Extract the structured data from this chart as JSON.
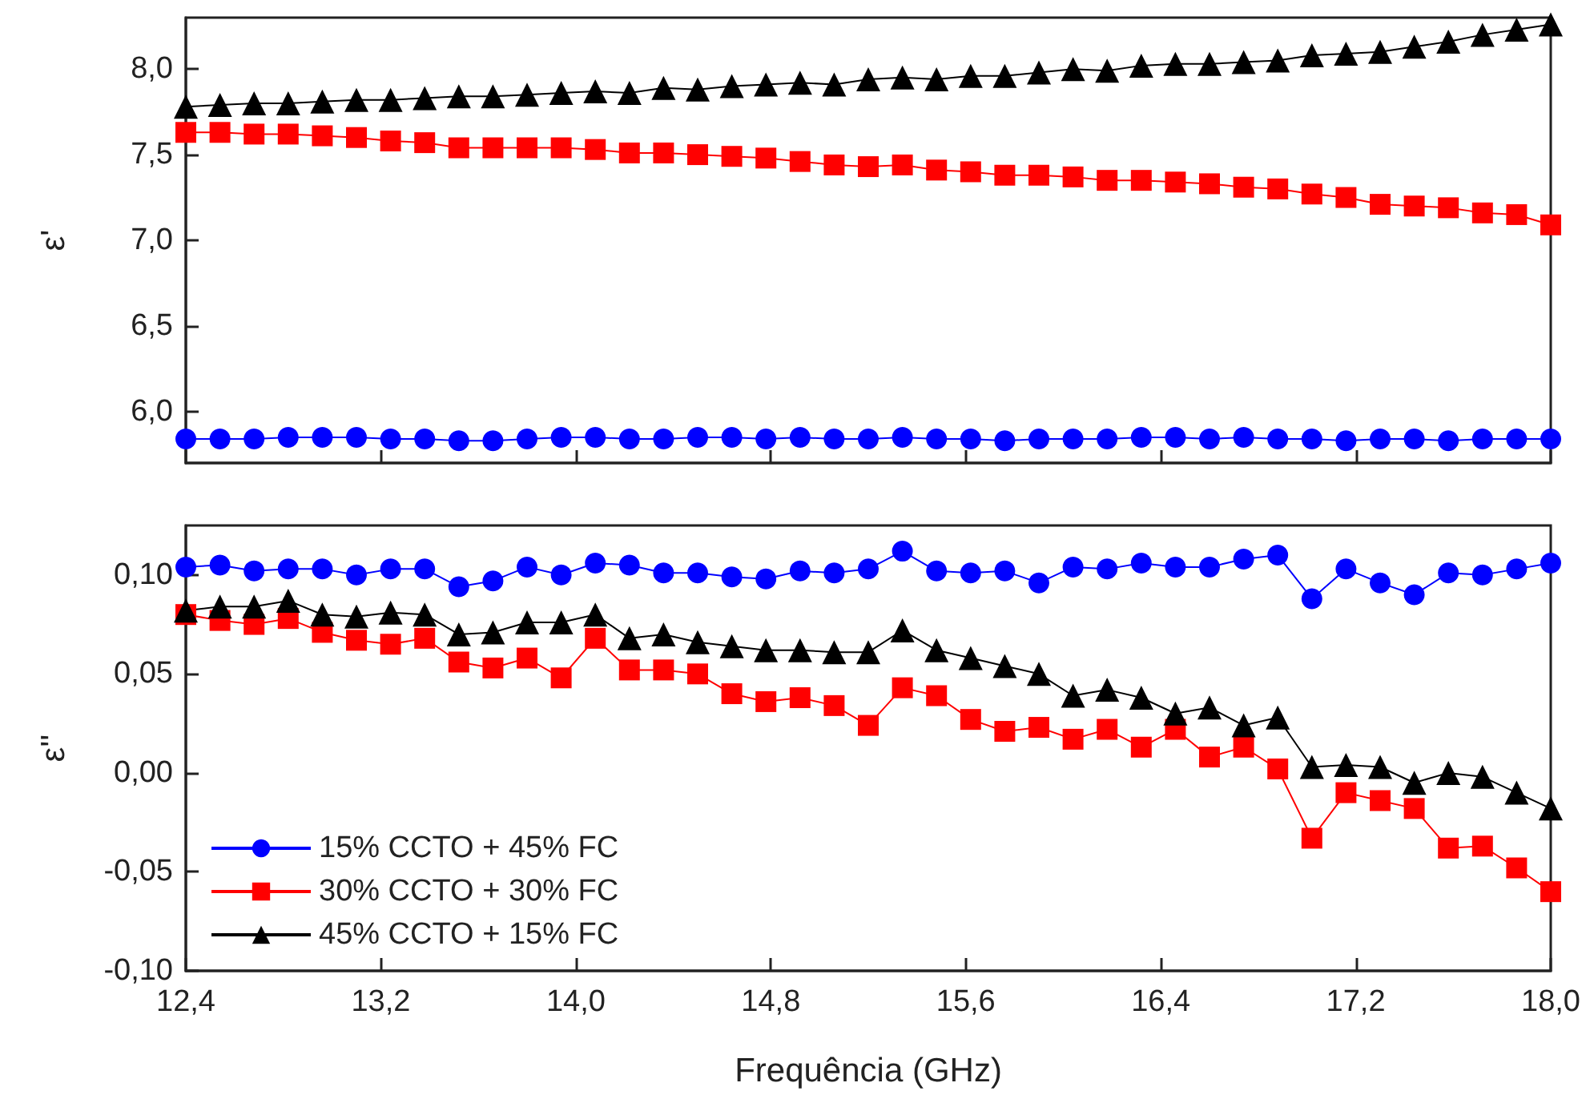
{
  "chart_data": [
    {
      "type": "line",
      "ylabel": "ε'",
      "tick_labels": "y",
      "grid": false,
      "legend": false,
      "x": [
        12.4,
        12.54,
        12.68,
        12.82,
        12.96,
        13.1,
        13.24,
        13.38,
        13.52,
        13.66,
        13.8,
        13.94,
        14.08,
        14.22,
        14.36,
        14.5,
        14.64,
        14.78,
        14.92,
        15.06,
        15.2,
        15.34,
        15.48,
        15.62,
        15.76,
        15.9,
        16.04,
        16.18,
        16.32,
        16.46,
        16.6,
        16.74,
        16.88,
        17.02,
        17.16,
        17.3,
        17.44,
        17.58,
        17.72,
        17.86,
        18.0
      ],
      "xlim": [
        12.4,
        18.0
      ],
      "xticks": [
        {
          "value": 12.4,
          "label": null
        },
        {
          "value": 13.2,
          "label": null
        },
        {
          "value": 14.0,
          "label": null
        },
        {
          "value": 14.8,
          "label": null
        },
        {
          "value": 15.6,
          "label": null
        },
        {
          "value": 16.4,
          "label": null
        },
        {
          "value": 17.2,
          "label": null
        },
        {
          "value": 18.0,
          "label": null
        }
      ],
      "ylim": [
        5.7,
        8.3
      ],
      "yticks": [
        {
          "value": 6.0,
          "label": "6,0"
        },
        {
          "value": 6.5,
          "label": "6,5"
        },
        {
          "value": 7.0,
          "label": "7,0"
        },
        {
          "value": 7.5,
          "label": "7,5"
        },
        {
          "value": 8.0,
          "label": "8,0"
        }
      ],
      "series": [
        {
          "color": "#0000ff",
          "marker": "circle",
          "values": [
            5.84,
            5.84,
            5.84,
            5.85,
            5.85,
            5.85,
            5.84,
            5.84,
            5.83,
            5.83,
            5.84,
            5.85,
            5.85,
            5.84,
            5.84,
            5.85,
            5.85,
            5.84,
            5.85,
            5.84,
            5.84,
            5.85,
            5.84,
            5.84,
            5.83,
            5.84,
            5.84,
            5.84,
            5.85,
            5.85,
            5.84,
            5.85,
            5.84,
            5.84,
            5.83,
            5.84,
            5.84,
            5.83,
            5.84,
            5.84,
            5.84
          ]
        },
        {
          "color": "#ff0000",
          "marker": "square",
          "values": [
            7.63,
            7.63,
            7.62,
            7.62,
            7.61,
            7.6,
            7.58,
            7.57,
            7.54,
            7.54,
            7.54,
            7.54,
            7.53,
            7.51,
            7.51,
            7.5,
            7.49,
            7.48,
            7.46,
            7.44,
            7.43,
            7.44,
            7.41,
            7.4,
            7.38,
            7.38,
            7.37,
            7.35,
            7.35,
            7.34,
            7.33,
            7.31,
            7.3,
            7.27,
            7.25,
            7.21,
            7.2,
            7.19,
            7.16,
            7.15,
            7.09
          ]
        },
        {
          "color": "#000000",
          "marker": "triangle",
          "values": [
            7.78,
            7.79,
            7.8,
            7.8,
            7.81,
            7.82,
            7.82,
            7.83,
            7.84,
            7.84,
            7.85,
            7.86,
            7.87,
            7.86,
            7.89,
            7.88,
            7.9,
            7.91,
            7.92,
            7.91,
            7.94,
            7.95,
            7.94,
            7.96,
            7.96,
            7.98,
            8.0,
            7.99,
            8.02,
            8.03,
            8.03,
            8.04,
            8.05,
            8.08,
            8.09,
            8.1,
            8.13,
            8.16,
            8.2,
            8.23,
            8.26
          ]
        }
      ]
    },
    {
      "type": "line",
      "ylabel": "ε''",
      "xlabel": "Frequência (GHz)",
      "grid": false,
      "legend": "bottom left",
      "x": [
        12.4,
        12.54,
        12.68,
        12.82,
        12.96,
        13.1,
        13.24,
        13.38,
        13.52,
        13.66,
        13.8,
        13.94,
        14.08,
        14.22,
        14.36,
        14.5,
        14.64,
        14.78,
        14.92,
        15.06,
        15.2,
        15.34,
        15.48,
        15.62,
        15.76,
        15.9,
        16.04,
        16.18,
        16.32,
        16.46,
        16.6,
        16.74,
        16.88,
        17.02,
        17.16,
        17.3,
        17.44,
        17.58,
        17.72,
        17.86,
        18.0
      ],
      "xlim": [
        12.4,
        18.0
      ],
      "xticks": [
        {
          "value": 12.4,
          "label": "12,4"
        },
        {
          "value": 13.2,
          "label": "13,2"
        },
        {
          "value": 14.0,
          "label": "14,0"
        },
        {
          "value": 14.8,
          "label": "14,8"
        },
        {
          "value": 15.6,
          "label": "15,6"
        },
        {
          "value": 16.4,
          "label": "16,4"
        },
        {
          "value": 17.2,
          "label": "17,2"
        },
        {
          "value": 18.0,
          "label": "18,0"
        }
      ],
      "ylim": [
        -0.1,
        0.125
      ],
      "yticks": [
        {
          "value": -0.1,
          "label": "-0,10"
        },
        {
          "value": -0.05,
          "label": "-0,05"
        },
        {
          "value": 0,
          "label": "0,00"
        },
        {
          "value": 0.05,
          "label": "0,05"
        },
        {
          "value": 0.1,
          "label": "0,10"
        }
      ],
      "series": [
        {
          "name": "15% CCTO + 45% FC",
          "color": "#0000ff",
          "marker": "circle",
          "values": [
            0.104,
            0.105,
            0.102,
            0.103,
            0.103,
            0.1,
            0.103,
            0.103,
            0.094,
            0.097,
            0.104,
            0.1,
            0.106,
            0.105,
            0.101,
            0.101,
            0.099,
            0.098,
            0.102,
            0.101,
            0.103,
            0.112,
            0.102,
            0.101,
            0.102,
            0.096,
            0.104,
            0.103,
            0.106,
            0.104,
            0.104,
            0.108,
            0.11,
            0.088,
            0.103,
            0.096,
            0.09,
            0.101,
            0.1,
            0.103,
            0.106
          ]
        },
        {
          "name": "30% CCTO + 30% FC",
          "color": "#ff0000",
          "marker": "square",
          "values": [
            0.08,
            0.077,
            0.075,
            0.078,
            0.071,
            0.067,
            0.065,
            0.068,
            0.056,
            0.053,
            0.058,
            0.048,
            0.068,
            0.052,
            0.052,
            0.05,
            0.04,
            0.036,
            0.038,
            0.034,
            0.024,
            0.043,
            0.039,
            0.027,
            0.021,
            0.023,
            0.017,
            0.022,
            0.013,
            0.022,
            0.008,
            0.013,
            0.002,
            -0.033,
            -0.01,
            -0.014,
            -0.018,
            -0.038,
            -0.037,
            -0.048,
            -0.06
          ]
        },
        {
          "name": "45% CCTO + 15% FC",
          "color": "#000000",
          "marker": "triangle",
          "values": [
            0.082,
            0.084,
            0.084,
            0.087,
            0.08,
            0.079,
            0.081,
            0.08,
            0.07,
            0.071,
            0.076,
            0.076,
            0.08,
            0.068,
            0.07,
            0.066,
            0.064,
            0.062,
            0.062,
            0.061,
            0.061,
            0.072,
            0.062,
            0.058,
            0.054,
            0.05,
            0.039,
            0.042,
            0.038,
            0.03,
            0.033,
            0.024,
            0.028,
            0.003,
            0.004,
            0.003,
            -0.005,
            0.0,
            -0.002,
            -0.01,
            -0.018
          ]
        }
      ]
    }
  ]
}
